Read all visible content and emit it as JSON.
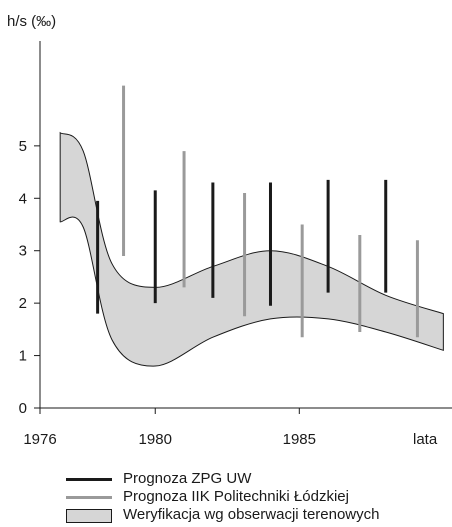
{
  "chart_data": {
    "type": "line",
    "ylabel": "h/s (‰)",
    "xlabel": "lata",
    "xlim": [
      1976,
      1990.3
    ],
    "ylim": [
      0,
      7
    ],
    "yticks": [
      0,
      1,
      2,
      3,
      4,
      5
    ],
    "xticks": [
      1976,
      1980,
      1985
    ],
    "grid": false,
    "legend_placement": "bottom",
    "series": [
      {
        "name": "Prognoza ZPG UW",
        "kind": "range_bars",
        "color": "#1a1a1a",
        "bars": [
          {
            "x": 1978.0,
            "low": 1.8,
            "high": 3.95
          },
          {
            "x": 1980.0,
            "low": 2.0,
            "high": 4.15
          },
          {
            "x": 1982.0,
            "low": 2.1,
            "high": 4.3
          },
          {
            "x": 1984.0,
            "low": 1.95,
            "high": 4.3
          },
          {
            "x": 1986.0,
            "low": 2.2,
            "high": 4.35
          },
          {
            "x": 1988.0,
            "low": 2.2,
            "high": 4.35
          }
        ]
      },
      {
        "name": "Prognoza IIK Politechniki Łódzkiej",
        "kind": "range_bars",
        "color": "#9a9a9a",
        "bars": [
          {
            "x": 1978.9,
            "low": 2.9,
            "high": 6.15
          },
          {
            "x": 1981.0,
            "low": 2.3,
            "high": 4.9
          },
          {
            "x": 1983.1,
            "low": 1.75,
            "high": 4.1
          },
          {
            "x": 1985.1,
            "low": 1.35,
            "high": 3.5
          },
          {
            "x": 1987.1,
            "low": 1.45,
            "high": 3.3
          },
          {
            "x": 1989.1,
            "low": 1.35,
            "high": 3.2
          }
        ]
      },
      {
        "name": "Weryfikacja wg obserwacji terenowych",
        "kind": "band",
        "color": "#d6d6d6",
        "x": [
          1976.7,
          1977.5,
          1978.5,
          1980.0,
          1982.0,
          1984.0,
          1986.0,
          1988.0,
          1990.0
        ],
        "upper": [
          5.25,
          4.9,
          2.75,
          2.3,
          2.7,
          3.0,
          2.7,
          2.15,
          1.8
        ],
        "lower": [
          3.55,
          3.45,
          1.3,
          0.8,
          1.35,
          1.7,
          1.7,
          1.45,
          1.1
        ]
      }
    ]
  }
}
